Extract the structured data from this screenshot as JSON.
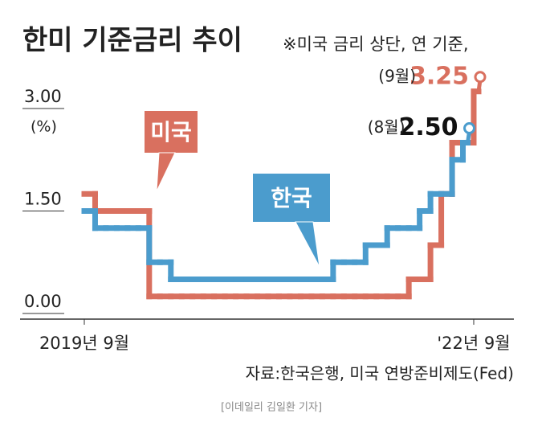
{
  "chart_data": {
    "type": "step",
    "title": "한미 기준금리 추이",
    "subtitle": "※미국 금리 상단, 연 기준,",
    "y_unit": "(%)",
    "source": "자료:한국은행, 미국 연방준비제도(Fed)",
    "credit": "[이데일리 김일환 기자]",
    "categories": [
      "2019년 9월",
      null,
      null,
      null,
      null,
      null,
      null,
      null,
      null,
      null,
      null,
      null,
      null,
      null,
      null,
      null,
      null,
      null,
      null,
      null,
      null,
      null,
      null,
      null,
      null,
      null,
      null,
      null,
      null,
      null,
      null,
      null,
      null,
      null,
      null,
      null,
      "'22년 9월"
    ],
    "ylim": [
      0,
      3.4
    ],
    "yticks": [
      {
        "value": 0,
        "label": "0.00"
      },
      {
        "value": 1.5,
        "label": "1.50"
      },
      {
        "value": 3,
        "label": "3.00"
      }
    ],
    "series": [
      {
        "name": "미국",
        "color": "#d9705f",
        "end_note": "(9월)",
        "values": [
          1.75,
          1.5,
          1.5,
          1.5,
          1.5,
          1.5,
          0.25,
          0.25,
          0.25,
          0.25,
          0.25,
          0.25,
          0.25,
          0.25,
          0.25,
          0.25,
          0.25,
          0.25,
          0.25,
          0.25,
          0.25,
          0.25,
          0.25,
          0.25,
          0.25,
          0.25,
          0.25,
          0.25,
          0.25,
          0.25,
          0.5,
          0.5,
          1.0,
          1.75,
          2.5,
          2.5,
          3.25
        ],
        "value_labels": [
          null,
          null,
          null,
          null,
          null,
          null,
          null,
          null,
          null,
          null,
          null,
          null,
          null,
          null,
          null,
          null,
          null,
          null,
          null,
          null,
          null,
          null,
          null,
          null,
          null,
          null,
          null,
          null,
          null,
          null,
          null,
          null,
          null,
          null,
          null,
          null,
          "3.25"
        ]
      },
      {
        "name": "한국",
        "color": "#4b9ccd",
        "end_note": "(8월)",
        "values": [
          1.5,
          1.25,
          1.25,
          1.25,
          1.25,
          1.25,
          0.75,
          0.75,
          0.5,
          0.5,
          0.5,
          0.5,
          0.5,
          0.5,
          0.5,
          0.5,
          0.5,
          0.5,
          0.5,
          0.5,
          0.5,
          0.5,
          0.5,
          0.75,
          0.75,
          0.75,
          1.0,
          1.0,
          1.25,
          1.25,
          1.25,
          1.5,
          1.75,
          1.75,
          2.25,
          2.5,
          null
        ],
        "value_labels": [
          null,
          null,
          null,
          null,
          null,
          null,
          null,
          null,
          null,
          null,
          null,
          null,
          null,
          null,
          null,
          null,
          null,
          null,
          null,
          null,
          null,
          null,
          null,
          null,
          null,
          null,
          null,
          null,
          null,
          null,
          null,
          null,
          null,
          null,
          null,
          "2.50",
          null
        ]
      }
    ]
  }
}
